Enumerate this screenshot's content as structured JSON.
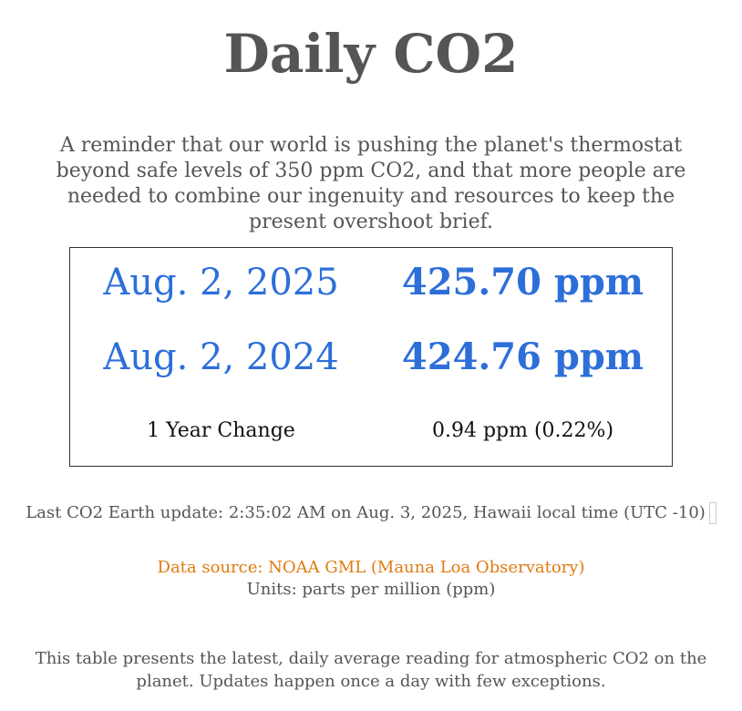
{
  "page": {
    "title": "Daily CO2",
    "intro": "A reminder that our world is pushing the planet's thermostat beyond safe levels of 350 ppm CO2, and that more people are needed to combine our ingenuity and resources to keep the present overshoot brief."
  },
  "readings": {
    "current": {
      "date": "Aug. 2, 2025",
      "ppm": "425.70 ppm"
    },
    "prior": {
      "date": "Aug. 2, 2024",
      "ppm": "424.76 ppm"
    },
    "change": {
      "label": "1 Year Change",
      "value": "0.94 ppm (0.22%)"
    }
  },
  "update": {
    "text": "Last CO2 Earth update: 2:35:02 AM on Aug. 3, 2025, Hawaii local time (UTC -10)"
  },
  "source": {
    "link_text": "Data source: NOAA GML (Mauna Loa Observatory)",
    "units": "Units: parts per million (ppm)"
  },
  "footnote": "This table presents the latest, daily average reading for atmospheric CO2 on the planet.  Updates happen once a day with few exceptions.",
  "colors": {
    "accent_blue": "#2d6fd9",
    "link_orange": "#e07a10",
    "text_gray": "#555555"
  }
}
